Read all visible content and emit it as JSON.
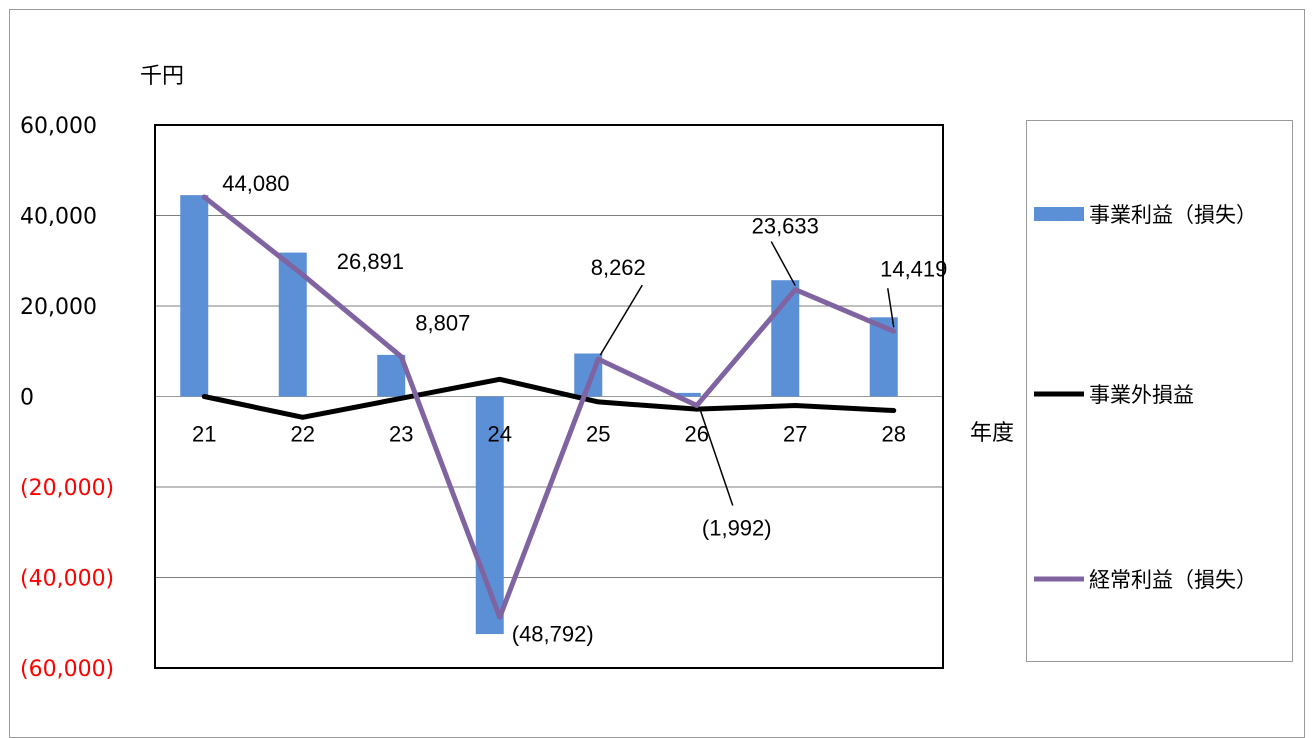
{
  "chart_data": {
    "type": "bar+line",
    "unit_label": "千円",
    "xaxis_label": "年度",
    "categories": [
      "21",
      "22",
      "23",
      "24",
      "25",
      "26",
      "27",
      "28"
    ],
    "ylim": [
      -60000,
      60000
    ],
    "yticks": [
      {
        "value": 60000,
        "label": "60,000",
        "color": "#000000"
      },
      {
        "value": 40000,
        "label": "40,000",
        "color": "#000000"
      },
      {
        "value": 20000,
        "label": "20,000",
        "color": "#000000"
      },
      {
        "value": 0,
        "label": "0",
        "color": "#000000"
      },
      {
        "value": -20000,
        "label": "(20,000)",
        "color": "#ff0000"
      },
      {
        "value": -40000,
        "label": "(40,000)",
        "color": "#ff0000"
      },
      {
        "value": -60000,
        "label": "(60,000)",
        "color": "#ff0000"
      }
    ],
    "grid": true,
    "legend_position": "right",
    "series": [
      {
        "name": "事業利益（損失）",
        "kind": "bar",
        "color": "#5b8fd6",
        "values": [
          44500,
          31800,
          9200,
          -52500,
          9500,
          800,
          25700,
          17500
        ]
      },
      {
        "name": "事業外損益",
        "kind": "line",
        "color": "#000000",
        "values": [
          0,
          -4600,
          -400,
          3800,
          -1200,
          -2800,
          -2000,
          -3100
        ]
      },
      {
        "name": "経常利益（損失）",
        "kind": "line",
        "color": "#8064a2",
        "values": [
          44080,
          26891,
          8807,
          -48792,
          8262,
          -1992,
          23633,
          14419
        ]
      }
    ],
    "data_labels": [
      "44,080",
      "26,891",
      "8,807",
      "(48,792)",
      "8,262",
      "(1,992)",
      "23,633",
      "14,419"
    ]
  }
}
